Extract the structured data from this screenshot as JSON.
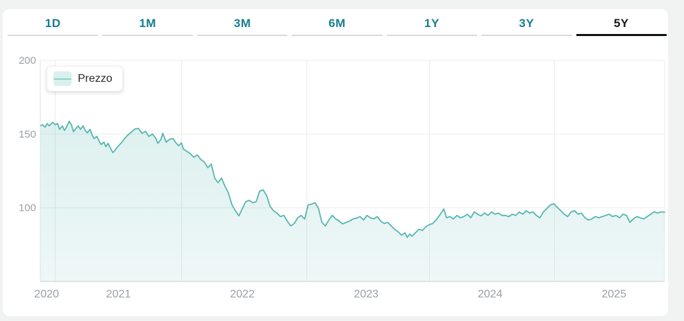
{
  "page": {
    "background": "#f1f3f3",
    "card_background": "#ffffff"
  },
  "tabs": {
    "items": [
      {
        "label": "1D",
        "selected": false
      },
      {
        "label": "1M",
        "selected": false
      },
      {
        "label": "3M",
        "selected": false
      },
      {
        "label": "6M",
        "selected": false
      },
      {
        "label": "1Y",
        "selected": false
      },
      {
        "label": "3Y",
        "selected": false
      },
      {
        "label": "5Y",
        "selected": true
      }
    ],
    "inactive_color": "#187e8d",
    "active_color": "#15181c",
    "inactive_underline": "#d9d9d9",
    "active_underline": "#101316"
  },
  "legend": {
    "label": "Prezzo",
    "swatch_fill": "#d9f0ee",
    "swatch_line": "#8fd0cb"
  },
  "chart_data": {
    "type": "area",
    "series_name": "Prezzo",
    "line_color": "#57b6b1",
    "fill_top": "rgba(87,182,177,0.20)",
    "fill_bottom": "rgba(87,182,177,0.10)",
    "grid_color": "#ebebeb",
    "axis_line_color": "#c9ced2",
    "left_axis_color": "#dcdfe1",
    "label_color": "#9aa0a6",
    "xlim": [
      2020.369,
      2025.408
    ],
    "ylim": [
      50,
      200
    ],
    "y_ticks": [
      {
        "v": 100,
        "label": "100"
      },
      {
        "v": 150,
        "label": "150"
      },
      {
        "v": 200,
        "label": "200"
      }
    ],
    "x_ticks": [
      {
        "v": 2020.42,
        "label": "2020"
      },
      {
        "v": 2021,
        "label": "2021"
      },
      {
        "v": 2022,
        "label": "2022"
      },
      {
        "v": 2023,
        "label": "2023"
      },
      {
        "v": 2024,
        "label": "2024"
      },
      {
        "v": 2025,
        "label": "2025"
      }
    ],
    "x_gridlines": [
      2020.49,
      2021.51,
      2022.52,
      2023.51,
      2024.52
    ],
    "points": [
      [
        2020.369,
        155.5
      ],
      [
        2020.385,
        156.3
      ],
      [
        2020.408,
        154.7
      ],
      [
        2020.425,
        157.1
      ],
      [
        2020.441,
        155.5
      ],
      [
        2020.469,
        157.9
      ],
      [
        2020.492,
        156.3
      ],
      [
        2020.508,
        157.1
      ],
      [
        2020.525,
        153.2
      ],
      [
        2020.547,
        155.5
      ],
      [
        2020.564,
        152.4
      ],
      [
        2020.581,
        154.7
      ],
      [
        2020.603,
        158.7
      ],
      [
        2020.62,
        156.3
      ],
      [
        2020.637,
        151.6
      ],
      [
        2020.659,
        154.0
      ],
      [
        2020.676,
        155.5
      ],
      [
        2020.693,
        153.2
      ],
      [
        2020.715,
        155.5
      ],
      [
        2020.732,
        152.4
      ],
      [
        2020.749,
        150.8
      ],
      [
        2020.771,
        153.2
      ],
      [
        2020.788,
        149.2
      ],
      [
        2020.804,
        146.9
      ],
      [
        2020.827,
        148.4
      ],
      [
        2020.844,
        145.3
      ],
      [
        2020.86,
        142.9
      ],
      [
        2020.883,
        144.5
      ],
      [
        2020.899,
        141.4
      ],
      [
        2020.916,
        143.7
      ],
      [
        2020.939,
        139.8
      ],
      [
        2020.955,
        137.4
      ],
      [
        2020.972,
        139.0
      ],
      [
        2020.994,
        141.4
      ],
      [
        2021.011,
        142.9
      ],
      [
        2021.028,
        144.5
      ],
      [
        2021.05,
        147.0
      ],
      [
        2021.078,
        149.5
      ],
      [
        2021.106,
        151.5
      ],
      [
        2021.134,
        153.5
      ],
      [
        2021.162,
        153.8
      ],
      [
        2021.19,
        150.5
      ],
      [
        2021.218,
        151.8
      ],
      [
        2021.246,
        148.4
      ],
      [
        2021.274,
        150.0
      ],
      [
        2021.302,
        147.0
      ],
      [
        2021.318,
        143.7
      ],
      [
        2021.341,
        146.0
      ],
      [
        2021.358,
        150.5
      ],
      [
        2021.385,
        144.5
      ],
      [
        2021.413,
        146.5
      ],
      [
        2021.441,
        146.9
      ],
      [
        2021.464,
        144.0
      ],
      [
        2021.486,
        142.1
      ],
      [
        2021.508,
        144.0
      ],
      [
        2021.525,
        139.8
      ],
      [
        2021.553,
        138.2
      ],
      [
        2021.581,
        136.6
      ],
      [
        2021.609,
        134.3
      ],
      [
        2021.637,
        135.8
      ],
      [
        2021.665,
        132.7
      ],
      [
        2021.693,
        131.1
      ],
      [
        2021.721,
        127.2
      ],
      [
        2021.749,
        129.6
      ],
      [
        2021.777,
        120.1
      ],
      [
        2021.804,
        117.0
      ],
      [
        2021.832,
        120.1
      ],
      [
        2021.86,
        114.6
      ],
      [
        2021.888,
        110.0
      ],
      [
        2021.916,
        102.0
      ],
      [
        2021.944,
        98.0
      ],
      [
        2021.972,
        94.5
      ],
      [
        2022.0,
        99.5
      ],
      [
        2022.028,
        104.2
      ],
      [
        2022.056,
        105.0
      ],
      [
        2022.084,
        103.4
      ],
      [
        2022.112,
        104.2
      ],
      [
        2022.14,
        111.3
      ],
      [
        2022.168,
        112.1
      ],
      [
        2022.196,
        108.2
      ],
      [
        2022.223,
        101.1
      ],
      [
        2022.251,
        98.0
      ],
      [
        2022.279,
        96.4
      ],
      [
        2022.307,
        94.0
      ],
      [
        2022.335,
        94.8
      ],
      [
        2022.363,
        90.9
      ],
      [
        2022.391,
        87.7
      ],
      [
        2022.419,
        89.3
      ],
      [
        2022.447,
        93.2
      ],
      [
        2022.475,
        94.8
      ],
      [
        2022.503,
        92.4
      ],
      [
        2022.531,
        101.9
      ],
      [
        2022.559,
        102.5
      ],
      [
        2022.587,
        103.4
      ],
      [
        2022.615,
        99.5
      ],
      [
        2022.642,
        90.1
      ],
      [
        2022.67,
        87.7
      ],
      [
        2022.698,
        91.7
      ],
      [
        2022.726,
        94.8
      ],
      [
        2022.754,
        92.4
      ],
      [
        2022.782,
        91.0
      ],
      [
        2022.81,
        89.0
      ],
      [
        2022.838,
        90.1
      ],
      [
        2022.866,
        91.0
      ],
      [
        2022.894,
        92.4
      ],
      [
        2022.922,
        93.0
      ],
      [
        2022.95,
        94.0
      ],
      [
        2022.978,
        91.7
      ],
      [
        2023.006,
        94.8
      ],
      [
        2023.034,
        93.2
      ],
      [
        2023.061,
        92.4
      ],
      [
        2023.089,
        94.0
      ],
      [
        2023.117,
        90.9
      ],
      [
        2023.145,
        89.3
      ],
      [
        2023.173,
        90.1
      ],
      [
        2023.201,
        87.7
      ],
      [
        2023.229,
        85.4
      ],
      [
        2023.257,
        83.8
      ],
      [
        2023.285,
        81.4
      ],
      [
        2023.313,
        83.0
      ],
      [
        2023.33,
        79.9
      ],
      [
        2023.352,
        82.2
      ],
      [
        2023.369,
        80.7
      ],
      [
        2023.397,
        83.0
      ],
      [
        2023.425,
        85.4
      ],
      [
        2023.453,
        84.6
      ],
      [
        2023.48,
        87.0
      ],
      [
        2023.508,
        88.5
      ],
      [
        2023.536,
        89.3
      ],
      [
        2023.564,
        91.7
      ],
      [
        2023.592,
        94.8
      ],
      [
        2023.626,
        99.2
      ],
      [
        2023.648,
        93.2
      ],
      [
        2023.676,
        94.0
      ],
      [
        2023.704,
        92.4
      ],
      [
        2023.732,
        94.8
      ],
      [
        2023.76,
        93.2
      ],
      [
        2023.788,
        94.0
      ],
      [
        2023.816,
        95.6
      ],
      [
        2023.844,
        93.2
      ],
      [
        2023.872,
        97.2
      ],
      [
        2023.899,
        95.6
      ],
      [
        2023.927,
        94.5
      ],
      [
        2023.955,
        96.4
      ],
      [
        2023.983,
        94.8
      ],
      [
        2024.011,
        97.2
      ],
      [
        2024.039,
        95.6
      ],
      [
        2024.067,
        96.4
      ],
      [
        2024.095,
        94.8
      ],
      [
        2024.123,
        94.8
      ],
      [
        2024.151,
        94.0
      ],
      [
        2024.179,
        95.6
      ],
      [
        2024.207,
        94.8
      ],
      [
        2024.235,
        97.2
      ],
      [
        2024.263,
        95.6
      ],
      [
        2024.291,
        98.0
      ],
      [
        2024.318,
        96.4
      ],
      [
        2024.346,
        97.2
      ],
      [
        2024.374,
        94.8
      ],
      [
        2024.402,
        93.2
      ],
      [
        2024.43,
        97.2
      ],
      [
        2024.458,
        99.5
      ],
      [
        2024.486,
        101.9
      ],
      [
        2024.514,
        102.7
      ],
      [
        2024.542,
        100.3
      ],
      [
        2024.57,
        98.0
      ],
      [
        2024.598,
        95.6
      ],
      [
        2024.626,
        94.0
      ],
      [
        2024.654,
        97.2
      ],
      [
        2024.682,
        98.0
      ],
      [
        2024.71,
        95.6
      ],
      [
        2024.737,
        96.4
      ],
      [
        2024.765,
        93.2
      ],
      [
        2024.793,
        91.7
      ],
      [
        2024.821,
        92.4
      ],
      [
        2024.849,
        94.0
      ],
      [
        2024.877,
        93.2
      ],
      [
        2024.905,
        94.0
      ],
      [
        2024.933,
        94.8
      ],
      [
        2024.961,
        95.6
      ],
      [
        2024.989,
        94.0
      ],
      [
        2025.017,
        94.8
      ],
      [
        2025.045,
        93.2
      ],
      [
        2025.073,
        95.6
      ],
      [
        2025.101,
        94.8
      ],
      [
        2025.128,
        90.1
      ],
      [
        2025.156,
        92.4
      ],
      [
        2025.184,
        94.0
      ],
      [
        2025.212,
        93.2
      ],
      [
        2025.24,
        92.4
      ],
      [
        2025.268,
        94.0
      ],
      [
        2025.296,
        95.6
      ],
      [
        2025.324,
        97.2
      ],
      [
        2025.352,
        96.4
      ],
      [
        2025.38,
        97.2
      ],
      [
        2025.408,
        97.0
      ]
    ]
  }
}
